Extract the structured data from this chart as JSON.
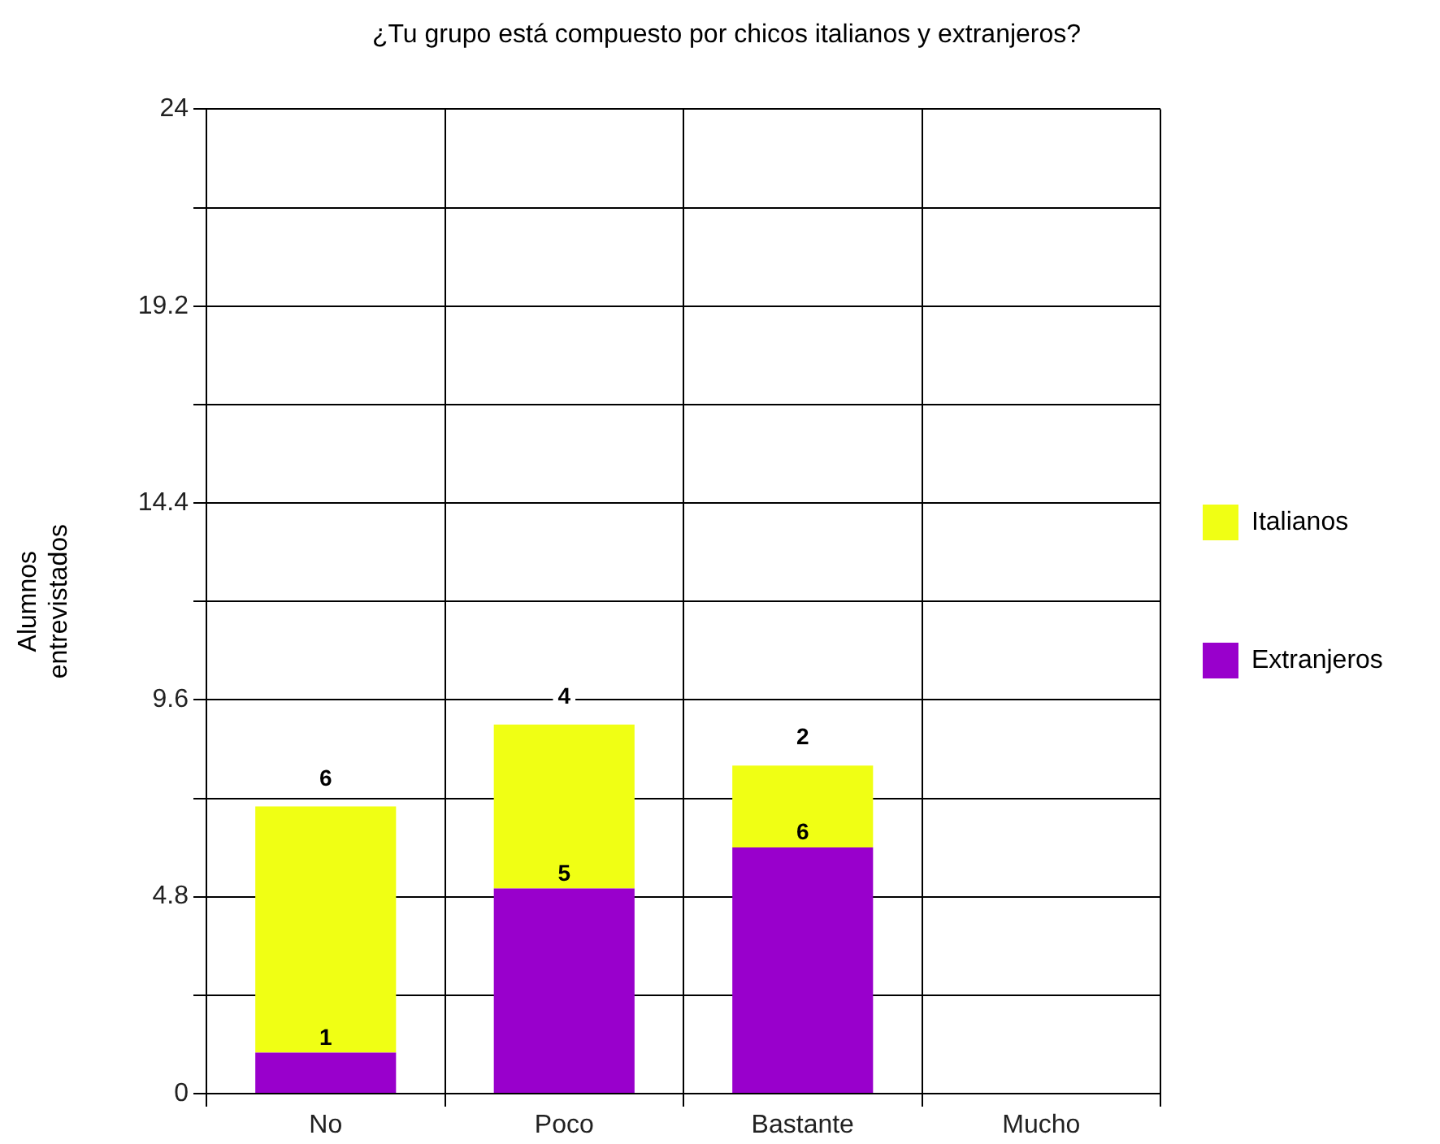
{
  "chart_data": {
    "type": "bar",
    "title": "¿Tu grupo está compuesto por chicos italianos y extranjeros?",
    "ylabel": "Alumnos entrevistados",
    "categories": [
      "No",
      "Poco",
      "Bastante",
      "Mucho"
    ],
    "series": [
      {
        "name": "Extranjeros",
        "color": "#9900cc",
        "values": [
          1,
          5,
          6,
          null
        ]
      },
      {
        "name": "Italianos",
        "color": "#f0ff14",
        "values": [
          6,
          4,
          2,
          null
        ]
      }
    ],
    "stacked": true,
    "ylim": [
      0,
      24
    ],
    "yticks": [
      0,
      {
        "value": 2.4,
        "label": null
      },
      4.8,
      {
        "value": 7.2,
        "label": null
      },
      9.6,
      {
        "value": 12,
        "label": null
      },
      14.4,
      {
        "value": 16.8,
        "label": null
      },
      19.2,
      {
        "value": 21.6,
        "label": null
      },
      24
    ],
    "grid": true,
    "legend": "right",
    "data_labels": true
  }
}
